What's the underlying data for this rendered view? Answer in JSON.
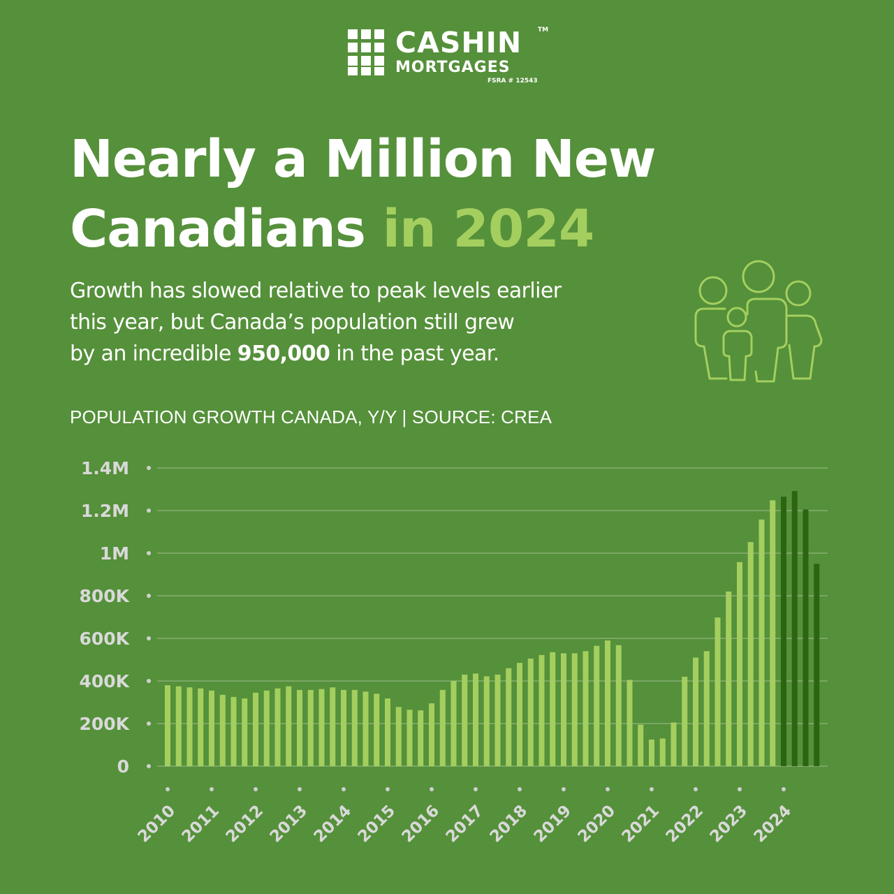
{
  "brand": {
    "name": "CASHIN",
    "tm": "TM",
    "sub": "MORTGAGES",
    "license": "FSRA # 12543"
  },
  "headline": {
    "line1": "Nearly a Million New",
    "line2_white": "Canadians",
    "line2_highlight": "in 2024"
  },
  "intro": {
    "line1": "Growth has slowed relative to peak levels earlier",
    "line2": "this year, but Canada’s population still grew",
    "line3_before": "by an incredible",
    "line3_bold": "950,000",
    "line3_after": "in the past year."
  },
  "icons": {
    "logo": "grid-logo-icon",
    "family": "family-icon"
  },
  "colors": {
    "background": "#55903a",
    "bar_light": "#a4cf5f",
    "bar_dark": "#2c6512",
    "highlight": "#a4cf5f",
    "tick_text": "#d9d9d9"
  },
  "chart_title": "POPULATION GROWTH CANADA, Y/Y | SOURCE: CREA",
  "chart_data": {
    "type": "bar",
    "title": "POPULATION GROWTH CANADA, Y/Y | SOURCE: CREA",
    "xlabel": "",
    "ylabel": "",
    "ylim": [
      0,
      1400000
    ],
    "grid": true,
    "yticks": [
      0,
      200000,
      400000,
      600000,
      800000,
      1000000,
      1200000,
      1400000
    ],
    "ytick_labels": [
      "0",
      "200K",
      "400K",
      "600K",
      "800K",
      "1M",
      "1.2M",
      "1.4M"
    ],
    "x_tick_labels": [
      "2010",
      "2011",
      "2012",
      "2013",
      "2014",
      "2015",
      "2016",
      "2017",
      "2018",
      "2019",
      "2020",
      "2021",
      "2022",
      "2023",
      "2024"
    ],
    "bars_per_year": 4,
    "series": [
      {
        "color": "#a4cf5f",
        "values": [
          380000,
          375000,
          370000,
          365000,
          355000,
          335000,
          325000,
          318000,
          345000,
          355000,
          365000,
          375000,
          358000,
          358000,
          362000,
          370000,
          358000,
          358000,
          350000,
          340000,
          318000,
          278000,
          265000,
          262000,
          295000,
          358000,
          400000,
          430000,
          435000,
          422000,
          430000,
          460000,
          485000,
          505000,
          522000,
          535000,
          530000,
          530000,
          540000,
          565000,
          590000,
          568000,
          405000,
          195000,
          125000,
          130000,
          205000,
          420000,
          510000,
          540000,
          698000,
          820000,
          958000,
          1052000,
          1158000,
          1248000
        ]
      },
      {
        "color": "#2c6512",
        "values": [
          1265000,
          1292000,
          1205000,
          950000
        ]
      }
    ]
  }
}
